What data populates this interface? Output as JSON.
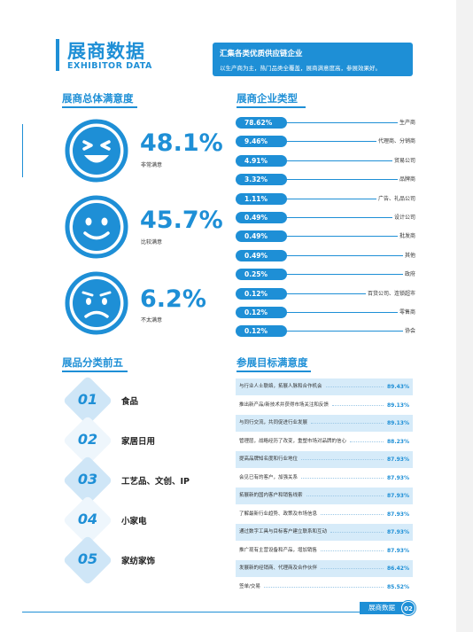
{
  "header": {
    "title": "展商数据",
    "subtitle": "EXHIBITOR DATA",
    "box_line1": "汇集各类优质供应链企业",
    "box_line2": "以生产商为主，热门品类全覆盖，展商满意度高，参展效果好。"
  },
  "satisfaction": {
    "heading": "展商总体满意度",
    "items": [
      {
        "pct": "48.1%",
        "label": "非常满意",
        "value": 48.1
      },
      {
        "pct": "45.7%",
        "label": "比较满意",
        "value": 45.7
      },
      {
        "pct": "6.2%",
        "label": "不太满意",
        "value": 6.2
      }
    ]
  },
  "enterprise_types": {
    "heading": "展商企业类型",
    "items": [
      {
        "pct": "78.62%",
        "name": "生产商"
      },
      {
        "pct": "9.46%",
        "name": "代理商、分销商"
      },
      {
        "pct": "4.91%",
        "name": "贸易公司"
      },
      {
        "pct": "3.32%",
        "name": "品牌商"
      },
      {
        "pct": "1.11%",
        "name": "广告、礼品公司"
      },
      {
        "pct": "0.49%",
        "name": "设计公司"
      },
      {
        "pct": "0.49%",
        "name": "批发商"
      },
      {
        "pct": "0.49%",
        "name": "其他"
      },
      {
        "pct": "0.25%",
        "name": "政府"
      },
      {
        "pct": "0.12%",
        "name": "百货公司、连锁超市"
      },
      {
        "pct": "0.12%",
        "name": "零售商"
      },
      {
        "pct": "0.12%",
        "name": "协会"
      }
    ]
  },
  "top5": {
    "heading": "展品分类前五",
    "items": [
      {
        "num": "01",
        "label": "食品"
      },
      {
        "num": "02",
        "label": "家居日用"
      },
      {
        "num": "03",
        "label": "工艺品、文创、IP"
      },
      {
        "num": "04",
        "label": "小家电"
      },
      {
        "num": "05",
        "label": "家纺家饰"
      }
    ]
  },
  "goals": {
    "heading": "参展目标满意度",
    "items": [
      {
        "text": "与行业人士联络，拓展人脉和合作机会",
        "val": "89.43%"
      },
      {
        "text": "推出新产品/新技术并获得市场关注和反馈",
        "val": "89.13%"
      },
      {
        "text": "与同行交流，共同促进行业发展",
        "val": "89.13%"
      },
      {
        "text": "管理层，战略经历了改变，重塑市场对品牌的信心",
        "val": "88.23%"
      },
      {
        "text": "提高品牌知名度和行业地位",
        "val": "87.93%"
      },
      {
        "text": "会见已有的客户，加强关系",
        "val": "87.93%"
      },
      {
        "text": "拓展新的国内客户和销售线索",
        "val": "87.93%"
      },
      {
        "text": "了解最新行业趋势、政策及市场信息",
        "val": "87.93%"
      },
      {
        "text": "通过数字工具与目标客户建立联系和互动",
        "val": "87.93%"
      },
      {
        "text": "推广现有主营设备和产品，增加销售",
        "val": "87.93%"
      },
      {
        "text": "发展新的经销商、代理商及合作伙伴",
        "val": "86.42%"
      },
      {
        "text": "签单/交易",
        "val": "85.52%"
      }
    ]
  },
  "footer": {
    "tag": "展商数据",
    "page": "02"
  },
  "colors": {
    "accent": "#1e8fd6",
    "light": "#d6ebf9"
  }
}
